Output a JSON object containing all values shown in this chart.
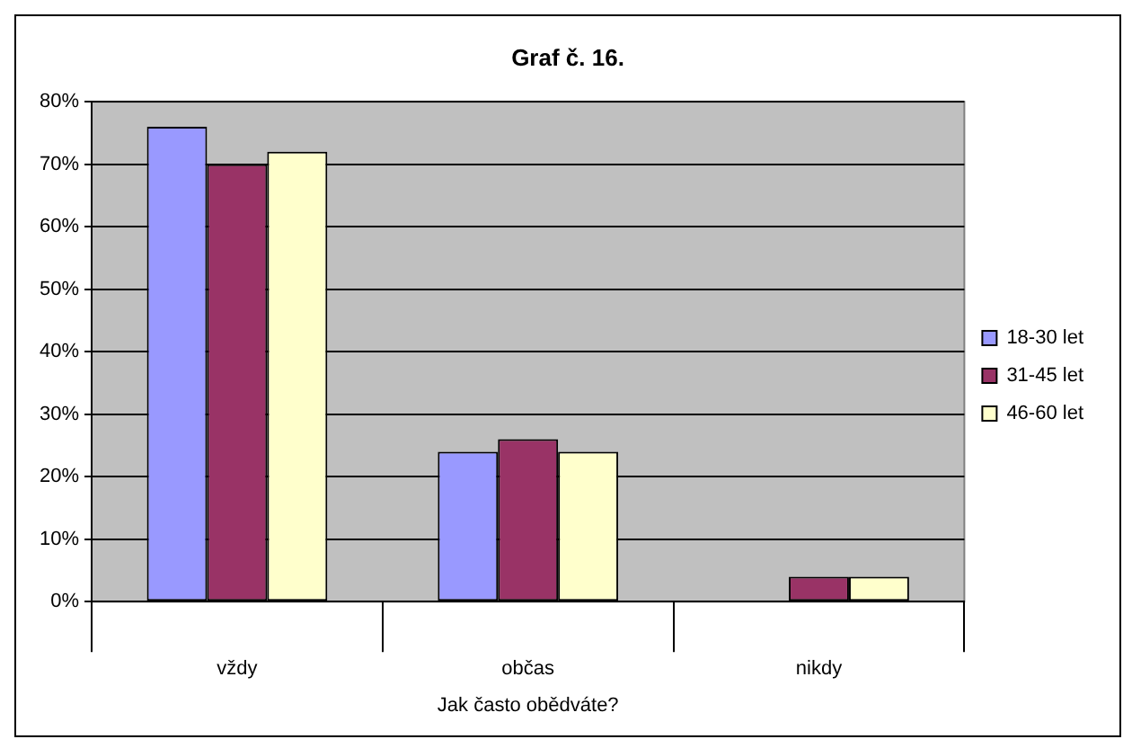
{
  "chart_data": {
    "type": "bar",
    "title": "Graf č. 16.",
    "xlabel": "Jak často obědváte?",
    "categories": [
      "vždy",
      "občas",
      "nikdy"
    ],
    "series": [
      {
        "name": "18-30 let",
        "color": "#9999ff",
        "values": [
          76,
          24,
          0
        ]
      },
      {
        "name": "31-45 let",
        "color": "#993366",
        "values": [
          70,
          26,
          4
        ]
      },
      {
        "name": "46-60 let",
        "color": "#ffffcc",
        "values": [
          72,
          24,
          4
        ]
      }
    ],
    "ylim": [
      0,
      80
    ],
    "yticks": [
      {
        "value": 0,
        "label": "0%"
      },
      {
        "value": 10,
        "label": "10%"
      },
      {
        "value": 20,
        "label": "20%"
      },
      {
        "value": 30,
        "label": "30%"
      },
      {
        "value": 40,
        "label": "40%"
      },
      {
        "value": 50,
        "label": "50%"
      },
      {
        "value": 60,
        "label": "60%"
      },
      {
        "value": 70,
        "label": "70%"
      },
      {
        "value": 80,
        "label": "80%"
      }
    ],
    "grid": "y",
    "legend": "right"
  }
}
